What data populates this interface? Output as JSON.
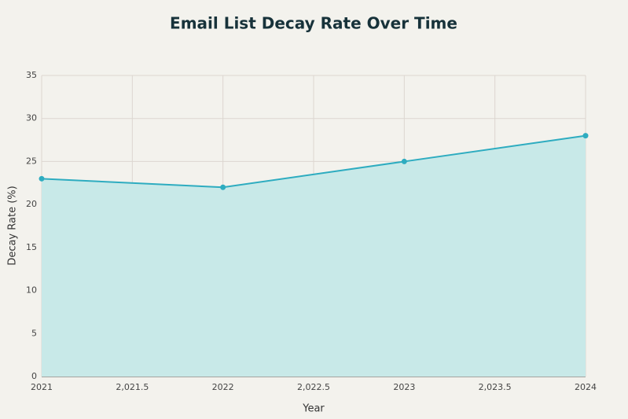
{
  "chart_data": {
    "type": "area",
    "title": "Email List Decay Rate Over Time",
    "x_label": "Year",
    "y_label": "Decay Rate (%)",
    "x": [
      2021,
      2022,
      2023,
      2024
    ],
    "series": [
      {
        "values": [
          23,
          22,
          25,
          28
        ],
        "color": "#2eacc0",
        "fill": "#c8e9e8"
      }
    ],
    "xlim": [
      2021,
      2024
    ],
    "xticks": [
      2021,
      {
        "value": 2021.5,
        "label": "2,021.5"
      },
      2022,
      {
        "value": 2022.5,
        "label": "2,022.5"
      },
      2023,
      {
        "value": 2023.5,
        "label": "2,023.5"
      },
      2024
    ],
    "ylim": [
      0,
      35
    ],
    "yticks": [
      0,
      5,
      10,
      15,
      20,
      25,
      30,
      35
    ],
    "grid": true
  }
}
